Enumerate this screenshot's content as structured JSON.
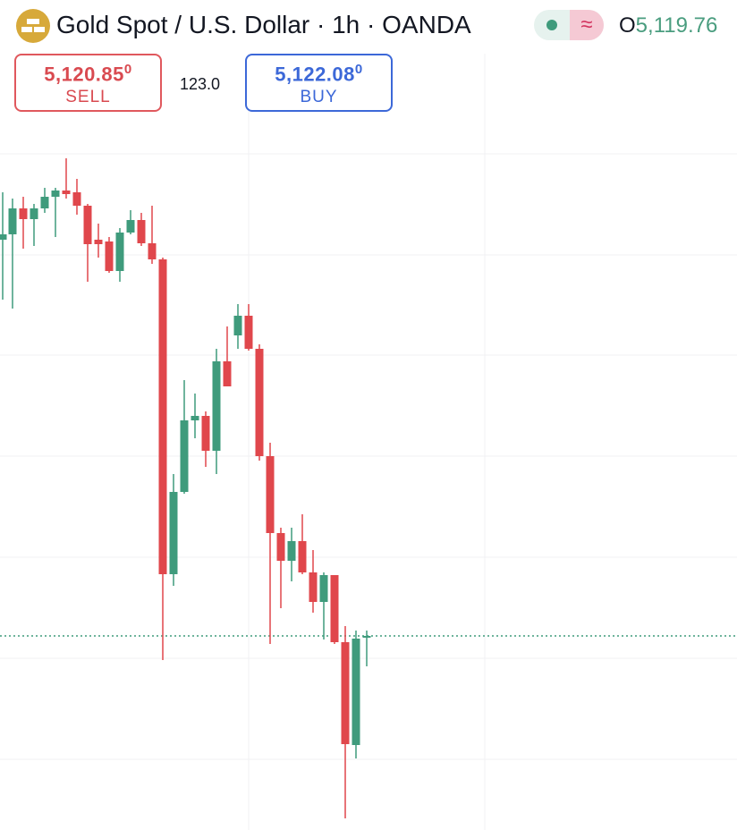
{
  "header": {
    "title": "Gold Spot / U.S. Dollar · 1h · OANDA",
    "open_label": "O",
    "open_value": "5,119.76"
  },
  "trade": {
    "sell": {
      "price": "5,120.85",
      "price_tail": "0",
      "label": "SELL"
    },
    "spread": "123.0",
    "buy": {
      "price": "5,122.08",
      "price_tail": "0",
      "label": "BUY"
    }
  }
}
